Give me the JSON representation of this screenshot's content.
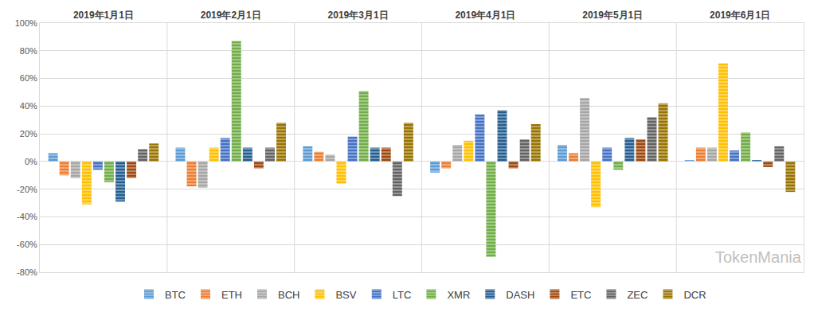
{
  "chart_data": {
    "type": "bar",
    "categories": [
      "2019年1月1日",
      "2019年2月1日",
      "2019年3月1日",
      "2019年4月1日",
      "2019年5月1日",
      "2019年6月1日"
    ],
    "series": [
      {
        "name": "BTC",
        "color": "#5B9BD5",
        "values": [
          6,
          10,
          11,
          -8,
          12,
          1
        ]
      },
      {
        "name": "ETH",
        "color": "#ED7D31",
        "values": [
          -10,
          -18,
          7,
          -5,
          6,
          10
        ]
      },
      {
        "name": "BCH",
        "color": "#A5A5A5",
        "values": [
          -12,
          -19,
          5,
          12,
          46,
          10
        ]
      },
      {
        "name": "BSV",
        "color": "#FFC000",
        "values": [
          -31,
          10,
          -16,
          15,
          -33,
          71
        ]
      },
      {
        "name": "LTC",
        "color": "#4472C4",
        "values": [
          -6,
          17,
          18,
          34,
          10,
          8
        ]
      },
      {
        "name": "XMR",
        "color": "#70AD47",
        "values": [
          -15,
          87,
          51,
          -69,
          -6,
          21
        ]
      },
      {
        "name": "DASH",
        "color": "#255E91",
        "values": [
          -29,
          10,
          10,
          37,
          17,
          1
        ]
      },
      {
        "name": "ETC",
        "color": "#9E480E",
        "values": [
          -12,
          -5,
          10,
          -5,
          16,
          -4
        ]
      },
      {
        "name": "ZEC",
        "color": "#636363",
        "values": [
          9,
          10,
          -25,
          16,
          32,
          11
        ]
      },
      {
        "name": "DCR",
        "color": "#997300",
        "values": [
          13,
          28,
          28,
          27,
          42,
          -22
        ]
      }
    ],
    "ylim": [
      -80,
      100
    ],
    "yticks": [
      {
        "value": -80,
        "label": "-80%"
      },
      {
        "value": -60,
        "label": "-60%"
      },
      {
        "value": -40,
        "label": "-40%"
      },
      {
        "value": -20,
        "label": "-20%"
      },
      {
        "value": 0,
        "label": "0%"
      },
      {
        "value": 20,
        "label": "20%"
      },
      {
        "value": 40,
        "label": "40%"
      },
      {
        "value": 60,
        "label": "60%"
      },
      {
        "value": 80,
        "label": "80%"
      },
      {
        "value": 100,
        "label": "100%"
      }
    ],
    "annotations": [
      "TokenMania"
    ],
    "grid": true,
    "legend": "bottom"
  }
}
